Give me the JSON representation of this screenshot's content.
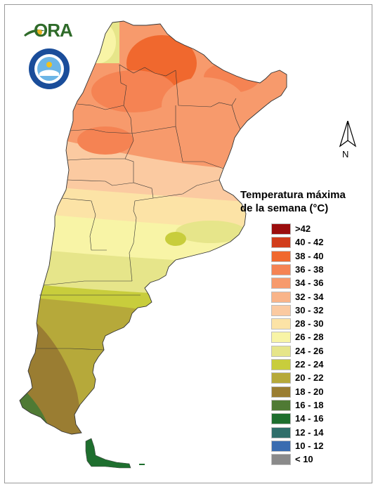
{
  "logo": {
    "text": "ORA"
  },
  "seal": {
    "description_icon": "smn-seal-icon"
  },
  "north_arrow": {
    "label": "N"
  },
  "legend": {
    "title_line1": "Temperatura máxima",
    "title_line2": "de la semana (°C)",
    "classes": [
      {
        "label": ">42",
        "color": "#9b0d0d"
      },
      {
        "label": "40 - 42",
        "color": "#d13c1b"
      },
      {
        "label": "38 - 40",
        "color": "#f0682e"
      },
      {
        "label": "36 - 38",
        "color": "#f58353"
      },
      {
        "label": "34 - 36",
        "color": "#f79a6c"
      },
      {
        "label": "32 - 34",
        "color": "#f9b489"
      },
      {
        "label": "30 - 32",
        "color": "#fbcaa1"
      },
      {
        "label": "28 - 30",
        "color": "#fce3a6"
      },
      {
        "label": "26 - 28",
        "color": "#f8f4a6"
      },
      {
        "label": "24 - 26",
        "color": "#e6e58a"
      },
      {
        "label": "22 - 24",
        "color": "#c8cd3c"
      },
      {
        "label": "20 - 22",
        "color": "#b6a93a"
      },
      {
        "label": "18 - 20",
        "color": "#9a7d32"
      },
      {
        "label": "16 - 18",
        "color": "#4f7a34"
      },
      {
        "label": "14 - 16",
        "color": "#1e6e2e"
      },
      {
        "label": "12 - 14",
        "color": "#2f6e6a"
      },
      {
        "label": "10 - 12",
        "color": "#3a6cb0"
      },
      {
        "label": "< 10",
        "color": "#8a8a8a"
      }
    ]
  }
}
